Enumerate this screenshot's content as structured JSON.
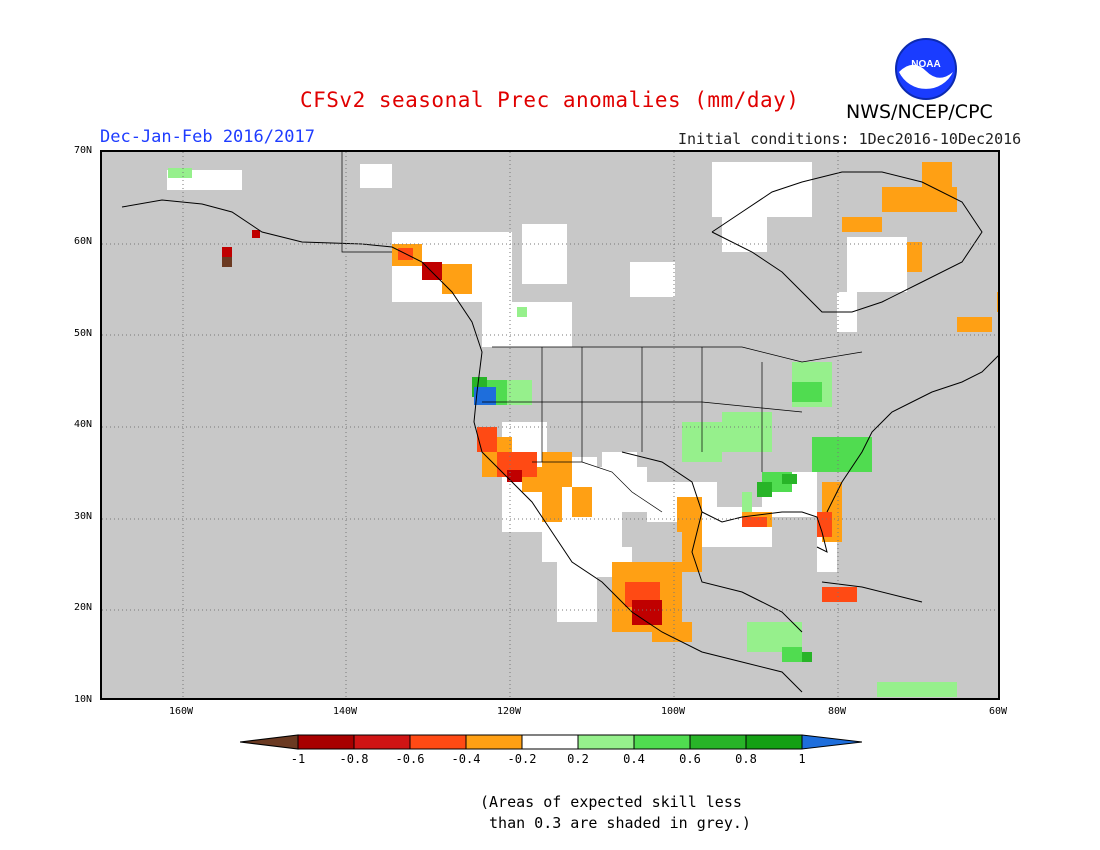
{
  "title": "CFSv2 seasonal Prec anomalies (mm/day)",
  "agency": "NWS/NCEP/CPC",
  "logo_text": "NOAA",
  "season": "Dec-Jan-Feb 2016/2017",
  "initial_conditions": "Initial conditions: 1Dec2016-10Dec2016",
  "lat_labels": [
    "70N",
    "60N",
    "50N",
    "40N",
    "30N",
    "20N",
    "10N"
  ],
  "lon_labels": [
    "160W",
    "140W",
    "120W",
    "100W",
    "80W",
    "60W"
  ],
  "colorbar": {
    "labels": [
      "-1",
      "-0.8",
      "-0.6",
      "-0.4",
      "-0.2",
      "0.2",
      "0.4",
      "0.6",
      "0.8",
      "1"
    ],
    "colors": [
      "#6b3a22",
      "#a80000",
      "#d01414",
      "#ff4a14",
      "#ffa014",
      "#ffffff",
      "#96f08c",
      "#50dc50",
      "#28b428",
      "#14a014",
      "#1e6edc"
    ]
  },
  "footnote": "(Areas of expected skill less\n than 0.3 are shaded in grey.)"
}
